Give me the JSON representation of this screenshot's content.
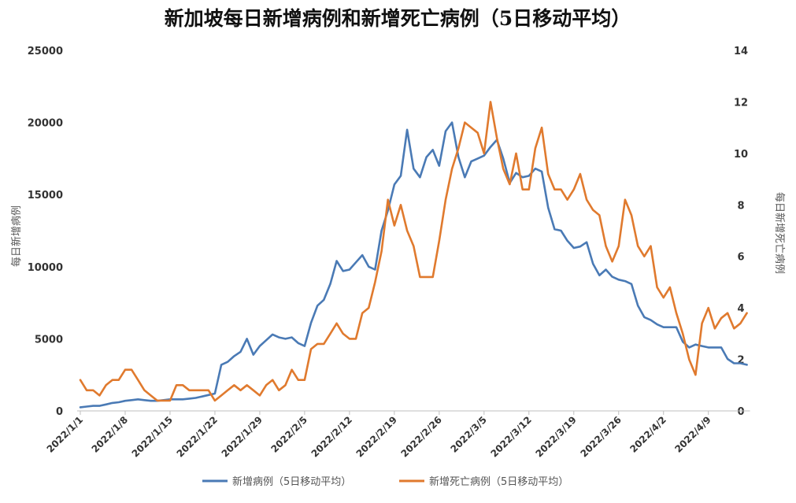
{
  "chart_data": {
    "type": "line",
    "title": "新加坡每日新增病例和新增死亡病例（5日移动平均）",
    "ylabel": "每日新增病例",
    "y2label": "每日新增死亡病例",
    "ylim": [
      0,
      25000
    ],
    "y2lim": [
      0,
      14
    ],
    "yticks": [
      "0",
      "5000",
      "10000",
      "15000",
      "20000",
      "25000"
    ],
    "y2ticks": [
      "0",
      "2",
      "4",
      "6",
      "8",
      "10",
      "12",
      "14"
    ],
    "x_tick_labels": [
      "2022/1/1",
      "2022/1/8",
      "2022/1/15",
      "2022/1/22",
      "2022/1/29",
      "2022/2/5",
      "2022/2/12",
      "2022/2/19",
      "2022/2/26",
      "2022/3/5",
      "2022/3/12",
      "2022/3/19",
      "2022/3/26",
      "2022/4/2",
      "2022/4/9"
    ],
    "legend_position": "bottom",
    "series": [
      {
        "name": "新增病例（5日移动平均）",
        "axis": "left",
        "color": "#4a7ab5",
        "values": [
          250,
          300,
          350,
          350,
          450,
          550,
          600,
          700,
          750,
          800,
          750,
          700,
          700,
          750,
          800,
          800,
          800,
          850,
          900,
          1000,
          1100,
          1200,
          3200,
          3400,
          3800,
          4100,
          5000,
          3900,
          4500,
          4900,
          5300,
          5100,
          5000,
          5100,
          4700,
          4500,
          6100,
          7300,
          7700,
          8800,
          10400,
          9700,
          9800,
          10300,
          10800,
          10000,
          9800,
          12500,
          13900,
          15700,
          16300,
          19500,
          16800,
          16200,
          17600,
          18100,
          17000,
          19400,
          20000,
          17600,
          16200,
          17300,
          17500,
          17700,
          18300,
          18800,
          17500,
          15800,
          16500,
          16200,
          16300,
          16800,
          16600,
          14100,
          12600,
          12500,
          11800,
          11300,
          11400,
          11700,
          10200,
          9400,
          9800,
          9300,
          9100,
          9000,
          8800,
          7300,
          6500,
          6300,
          6000,
          5800,
          5800,
          5800,
          4800,
          4400,
          4600,
          4500,
          4400,
          4400,
          4400,
          3600,
          3300,
          3300,
          3200
        ]
      },
      {
        "name": "新增死亡病例（5日移动平均）",
        "axis": "right",
        "color": "#e07a2e",
        "values": [
          1.2,
          0.8,
          0.8,
          0.6,
          1.0,
          1.2,
          1.2,
          1.6,
          1.6,
          1.2,
          0.8,
          0.6,
          0.4,
          0.4,
          0.4,
          1.0,
          1.0,
          0.8,
          0.8,
          0.8,
          0.8,
          0.4,
          0.6,
          0.8,
          1.0,
          0.8,
          1.0,
          0.8,
          0.6,
          1.0,
          1.2,
          0.8,
          1.0,
          1.6,
          1.2,
          1.2,
          2.4,
          2.6,
          2.6,
          3.0,
          3.4,
          3.0,
          2.8,
          2.8,
          3.8,
          4.0,
          5.0,
          6.2,
          8.2,
          7.2,
          8.0,
          7.0,
          6.4,
          5.2,
          5.2,
          5.2,
          6.6,
          8.2,
          9.4,
          10.2,
          11.2,
          11.0,
          10.8,
          10.0,
          12.0,
          10.6,
          9.4,
          8.8,
          10.0,
          8.6,
          8.6,
          10.2,
          11.0,
          9.2,
          8.6,
          8.6,
          8.2,
          8.6,
          9.2,
          8.2,
          7.8,
          7.6,
          6.4,
          5.8,
          6.4,
          8.2,
          7.6,
          6.4,
          6.0,
          6.4,
          4.8,
          4.4,
          4.8,
          3.8,
          3.0,
          2.0,
          1.4,
          3.4,
          4.0,
          3.2,
          3.6,
          3.8,
          3.2,
          3.4,
          3.8
        ]
      }
    ]
  }
}
